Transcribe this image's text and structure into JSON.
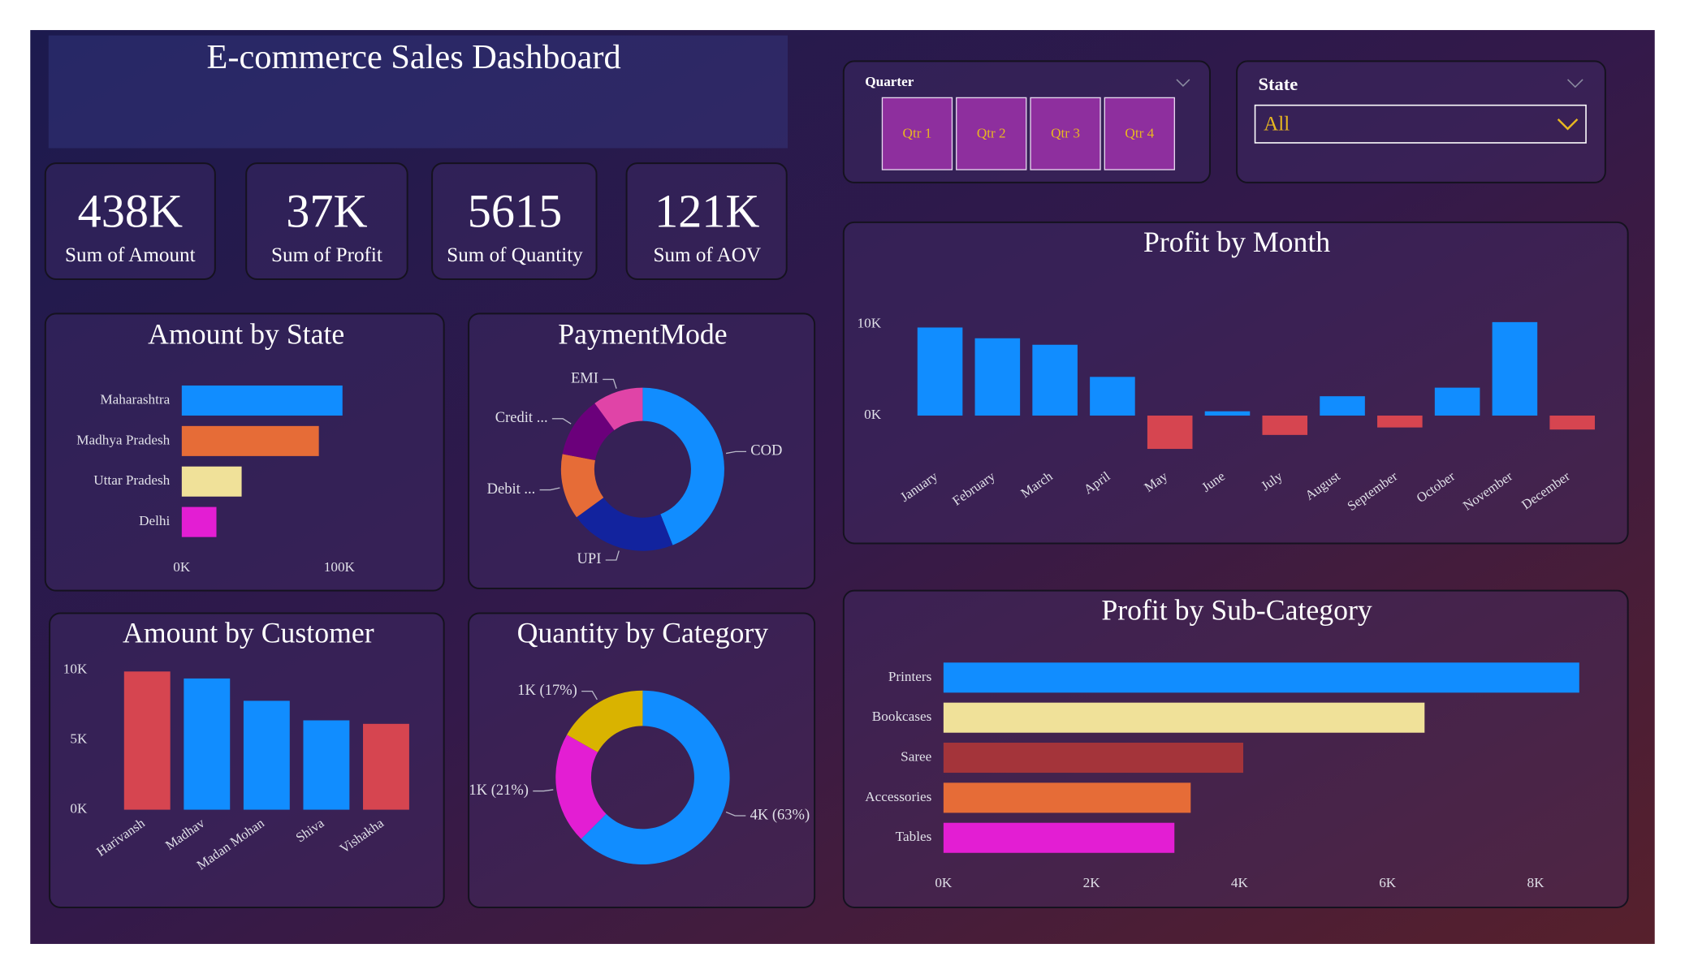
{
  "header": {
    "title": "E-commerce Sales Dashboard"
  },
  "kpis": [
    {
      "value": "438K",
      "label": "Sum of Amount"
    },
    {
      "value": "37K",
      "label": "Sum of Profit"
    },
    {
      "value": "5615",
      "label": "Sum of Quantity"
    },
    {
      "value": "121K",
      "label": "Sum of AOV"
    }
  ],
  "filters": {
    "quarter": {
      "label": "Quarter",
      "options": [
        "Qtr 1",
        "Qtr 2",
        "Qtr 3",
        "Qtr 4"
      ]
    },
    "state": {
      "label": "State",
      "selected": "All"
    }
  },
  "chart_data": [
    {
      "type": "hbar",
      "title": "Amount by State",
      "categories": [
        "Maharashtra",
        "Madhya Pradesh",
        "Uttar Pradesh",
        "Delhi"
      ],
      "values": [
        102000,
        87000,
        38000,
        22000
      ],
      "colors": [
        "#118DFF",
        "#E66C37",
        "#F0E199",
        "#E31ED3"
      ],
      "xlim": [
        0,
        120000
      ],
      "xticks": [
        {
          "value": 0,
          "label": "0K"
        },
        {
          "value": 100000,
          "label": "100K"
        }
      ]
    },
    {
      "type": "donut",
      "title": "PaymentMode",
      "categories": [
        "COD",
        "UPI",
        "Debit ...",
        "Credit ...",
        "EMI"
      ],
      "values": [
        44,
        21,
        13,
        12,
        10
      ],
      "colors": [
        "#118DFF",
        "#12239E",
        "#E66C37",
        "#6B007B",
        "#E044A7"
      ]
    },
    {
      "type": "bar",
      "title": "Amount by Customer",
      "categories": [
        "Harivansh",
        "Madhav",
        "Madan Mohan",
        "Shiva",
        "Vishakha"
      ],
      "values": [
        9900,
        9400,
        7800,
        6400,
        6150
      ],
      "colors": [
        "#D64550",
        "#118DFF",
        "#118DFF",
        "#118DFF",
        "#D64550"
      ],
      "ylim": [
        0,
        10500
      ],
      "yticks": [
        {
          "value": 0,
          "label": "0K"
        },
        {
          "value": 5000,
          "label": "5K"
        },
        {
          "value": 10000,
          "label": "10K"
        }
      ]
    },
    {
      "type": "donut",
      "title": "Quantity by Category",
      "values": [
        3510,
        1160,
        945
      ],
      "value_labels": [
        "4K (63%)",
        "1K (21%)",
        "1K (17%)"
      ],
      "colors": [
        "#118DFF",
        "#E31ED3",
        "#D9B300"
      ]
    },
    {
      "type": "bar",
      "title": "Profit by Month",
      "categories": [
        "January",
        "February",
        "March",
        "April",
        "May",
        "June",
        "July",
        "August",
        "September",
        "October",
        "November",
        "December"
      ],
      "values": [
        9650,
        8470,
        7760,
        4240,
        -3650,
        470,
        -2120,
        2120,
        -1300,
        3060,
        10240,
        -1530
      ],
      "color": "#118DFF",
      "negative_color": "#D64550",
      "ylim": [
        -4500,
        11000
      ],
      "yticks": [
        {
          "value": 0,
          "label": "0K"
        },
        {
          "value": 10000,
          "label": "10K"
        }
      ]
    },
    {
      "type": "hbar",
      "title": "Profit by Sub-Category",
      "categories": [
        "Printers",
        "Bookcases",
        "Saree",
        "Accessories",
        "Tables"
      ],
      "values": [
        8590,
        6500,
        4050,
        3340,
        3120
      ],
      "colors": [
        "#118DFF",
        "#F0E199",
        "#A4343A",
        "#E66C37",
        "#E31ED3"
      ],
      "xlim": [
        0,
        9000
      ],
      "xticks": [
        {
          "value": 0,
          "label": "0K"
        },
        {
          "value": 2000,
          "label": "2K"
        },
        {
          "value": 4000,
          "label": "4K"
        },
        {
          "value": 6000,
          "label": "6K"
        },
        {
          "value": 8000,
          "label": "8K"
        }
      ]
    }
  ]
}
